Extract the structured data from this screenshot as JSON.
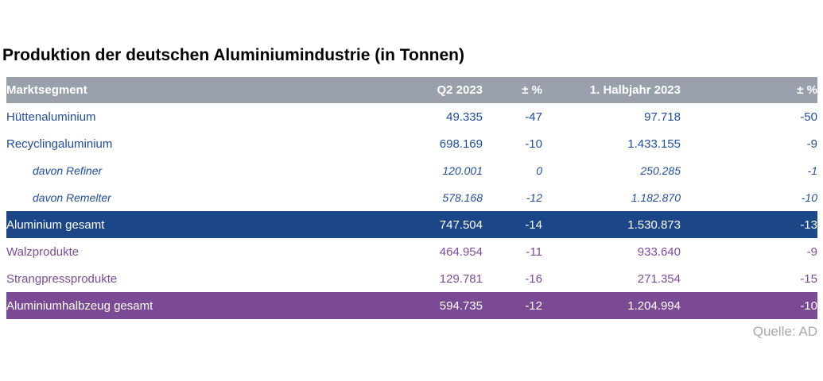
{
  "page": {
    "title": "Produktion der deutschen Aluminiumindustrie (in Tonnen)",
    "source": "Quelle: AD"
  },
  "colors": {
    "page_bg": "#FFFFFF",
    "title_text": "#000000",
    "header_bg": "#99A0AB",
    "header_text": "#FFFFFF",
    "blue_text": "#1E4D9B",
    "purple_text": "#7D4B97",
    "total_blue_bg": "#1B4688",
    "total_purple_bg": "#7B4A94",
    "total_text": "#FFFFFF",
    "source_text": "#A9A9A9"
  },
  "chart_data": {
    "type": "table",
    "title": "Produktion der deutschen Aluminiumindustrie (in Tonnen)",
    "columns": [
      "Marktsegment",
      "Q2 2023",
      "± %",
      "1. Halbjahr 2023",
      "± %"
    ],
    "rows": [
      {
        "label": "Hüttenaluminium",
        "values": [
          "49.335",
          "-47",
          "97.718",
          "-50"
        ]
      },
      {
        "label": "Recyclingaluminium",
        "values": [
          "698.169",
          "-10",
          "1.433.155",
          "-9"
        ]
      },
      {
        "label": "davon Refiner",
        "values": [
          "120.001",
          "0",
          "250.285",
          "-1"
        ]
      },
      {
        "label": "davon Remelter",
        "values": [
          "578.168",
          "-12",
          "1.182.870",
          "-10"
        ]
      },
      {
        "label": "Aluminium gesamt",
        "values": [
          "747.504",
          "-14",
          "1.530.873",
          "-13"
        ]
      },
      {
        "label": "Walzprodukte",
        "values": [
          "464.954",
          "-11",
          "933.640",
          "-9"
        ]
      },
      {
        "label": "Strangpressprodukte",
        "values": [
          "129.781",
          "-16",
          "271.354",
          "-15"
        ]
      },
      {
        "label": "Aluminiumhalbzeug gesamt",
        "values": [
          "594.735",
          "-12",
          "1.204.994",
          "-10"
        ]
      }
    ],
    "source": "Quelle: AD"
  }
}
